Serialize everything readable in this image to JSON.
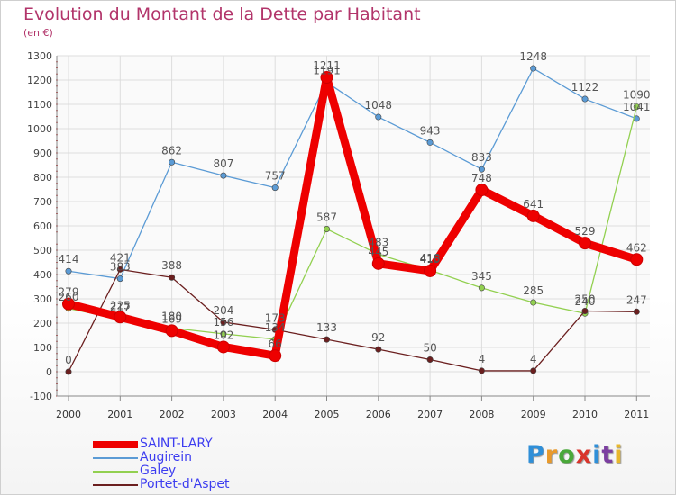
{
  "title": "Evolution du Montant de la Dette par Habitant",
  "subtitle": "(en €)",
  "logo": "Proxiti",
  "chart_data": {
    "type": "line",
    "x": [
      "2000",
      "2001",
      "2002",
      "2003",
      "2004",
      "2005",
      "2006",
      "2007",
      "2008",
      "2009",
      "2010",
      "2011"
    ],
    "ylim": [
      -100,
      1300
    ],
    "yticks": [
      -100,
      0,
      100,
      200,
      300,
      400,
      500,
      600,
      700,
      800,
      900,
      1000,
      1100,
      1200,
      1300
    ],
    "grid": true,
    "legend_position": "bottom-left",
    "series": [
      {
        "name": "SAINT-LARY",
        "color": "#ee0000",
        "values": [
          279,
          225,
          169,
          102,
          66,
          1211,
          445,
          415,
          748,
          641,
          529,
          462
        ]
      },
      {
        "name": "Augirein",
        "color": "#5b9bd5",
        "values": [
          414,
          383,
          862,
          807,
          757,
          1191,
          1048,
          943,
          833,
          1248,
          1122,
          1041
        ]
      },
      {
        "name": "Galey",
        "color": "#92d050",
        "values": [
          260,
          217,
          180,
          156,
          134,
          587,
          483,
          418,
          345,
          285,
          240,
          1090
        ]
      },
      {
        "name": "Portet-d'Aspet",
        "color": "#6b1f1f",
        "values": [
          0,
          421,
          388,
          204,
          173,
          133,
          92,
          50,
          4,
          4,
          250,
          247
        ]
      }
    ]
  }
}
